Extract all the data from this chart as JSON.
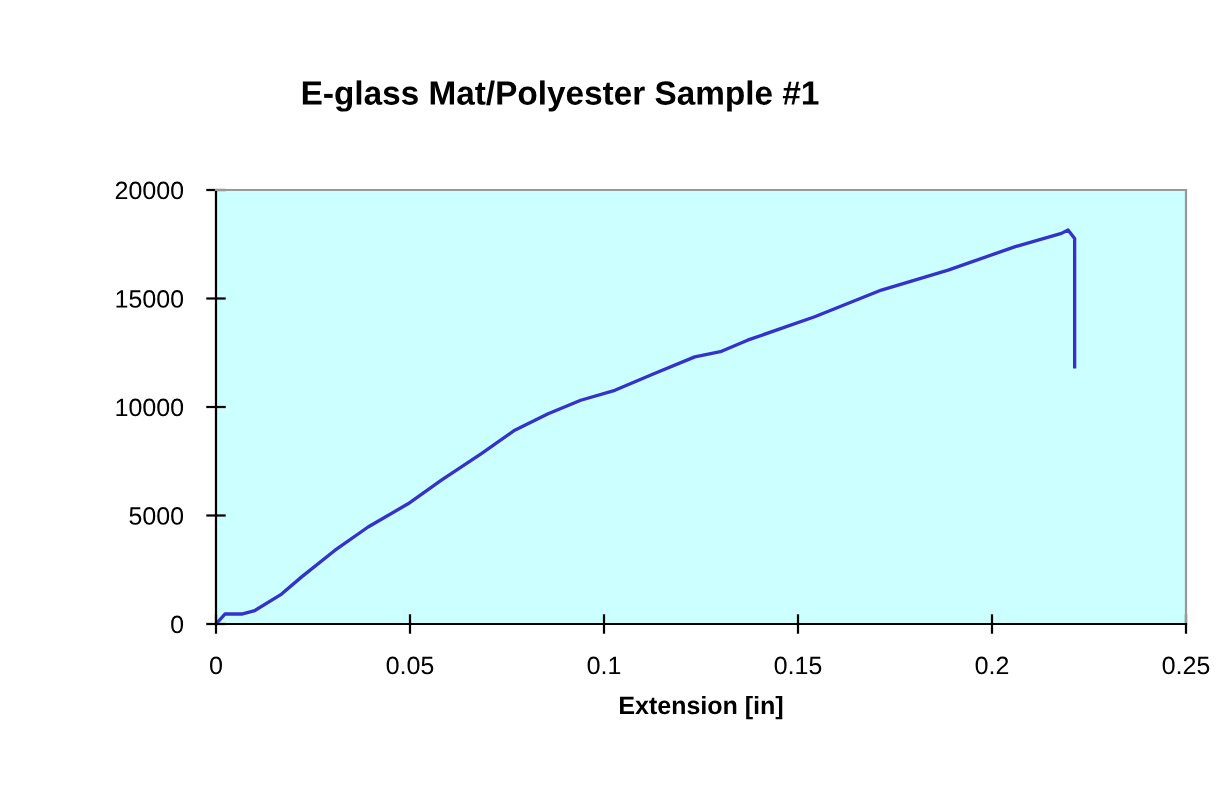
{
  "chart_data": {
    "type": "line",
    "title": "E-glass Mat/Polyester Sample #1",
    "xlabel": "Extension [in]",
    "x": [
      0,
      0.0023,
      0.0066,
      0.01,
      0.0169,
      0.022,
      0.0306,
      0.0392,
      0.0495,
      0.058,
      0.0684,
      0.077,
      0.0856,
      0.094,
      0.1028,
      0.113,
      0.1234,
      0.13,
      0.137,
      0.1543,
      0.1715,
      0.1887,
      0.206,
      0.2179,
      0.2196,
      0.2213,
      0.2213
    ],
    "series": [
      {
        "color": "#3333cc",
        "values": [
          0,
          460,
          460,
          620,
          1380,
          2160,
          3390,
          4470,
          5540,
          6620,
          7850,
          8930,
          9690,
          10310,
          10770,
          11540,
          12310,
          12550,
          13080,
          14160,
          15390,
          16310,
          17390,
          18000,
          18160,
          17760,
          11850
        ]
      }
    ],
    "xlim": [
      0,
      0.25
    ],
    "ylim": [
      0,
      20000
    ],
    "xticks": [
      0,
      0.05,
      0.1,
      0.15,
      0.2,
      0.25
    ],
    "yticks": [
      0,
      5000,
      10000,
      15000,
      20000
    ],
    "grid": false,
    "marker": "none",
    "line_style": "solid",
    "legend": false
  }
}
